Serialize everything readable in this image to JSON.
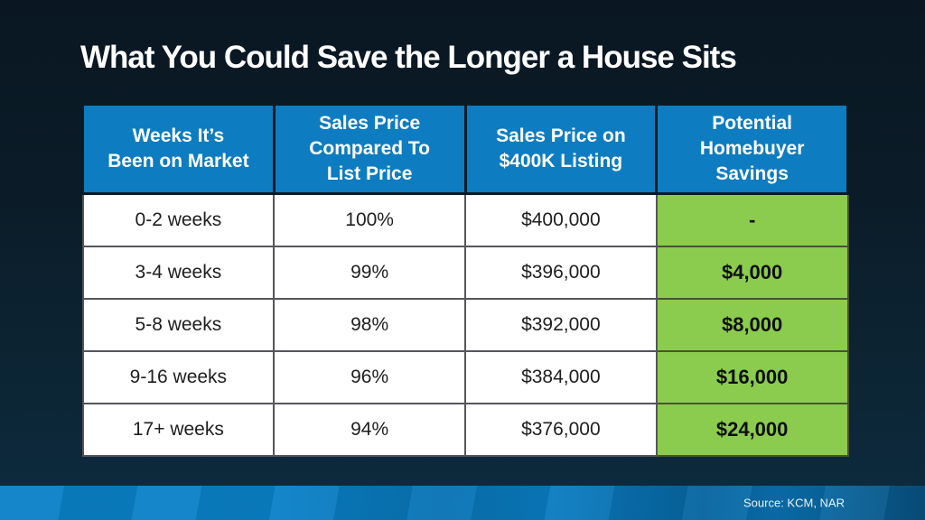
{
  "title": "What You Could Save the Longer a House Sits",
  "footer": {
    "source": "Source: KCM, NAR"
  },
  "chart_data": {
    "type": "table",
    "title": "What You Could Save the Longer a House Sits",
    "columns": [
      "Weeks It’s\nBeen on Market",
      "Sales Price\nCompared To\nList Price",
      "Sales Price on\n$400K Listing",
      "Potential\nHomebuyer\nSavings"
    ],
    "rows": [
      [
        "0-2 weeks",
        "100%",
        "$400,000",
        "-"
      ],
      [
        "3-4 weeks",
        "99%",
        "$396,000",
        "$4,000"
      ],
      [
        "5-8 weeks",
        "98%",
        "$392,000",
        "$8,000"
      ],
      [
        "9-16 weeks",
        "96%",
        "$384,000",
        "$16,000"
      ],
      [
        "17+ weeks",
        "94%",
        "$376,000",
        "$24,000"
      ]
    ],
    "highlight_column": "Potential Homebuyer Savings",
    "source": "Source: KCM, NAR"
  },
  "colors": {
    "background_top": "#0a1722",
    "background_bottom": "#0d2b40",
    "header_blue": "#0e7cc0",
    "savings_green": "#8bcc4e",
    "footer_blue_left": "#0a81c7",
    "footer_blue_right": "#07507f",
    "cell_border_gray": "#54565a",
    "title_white": "#ffffff"
  }
}
